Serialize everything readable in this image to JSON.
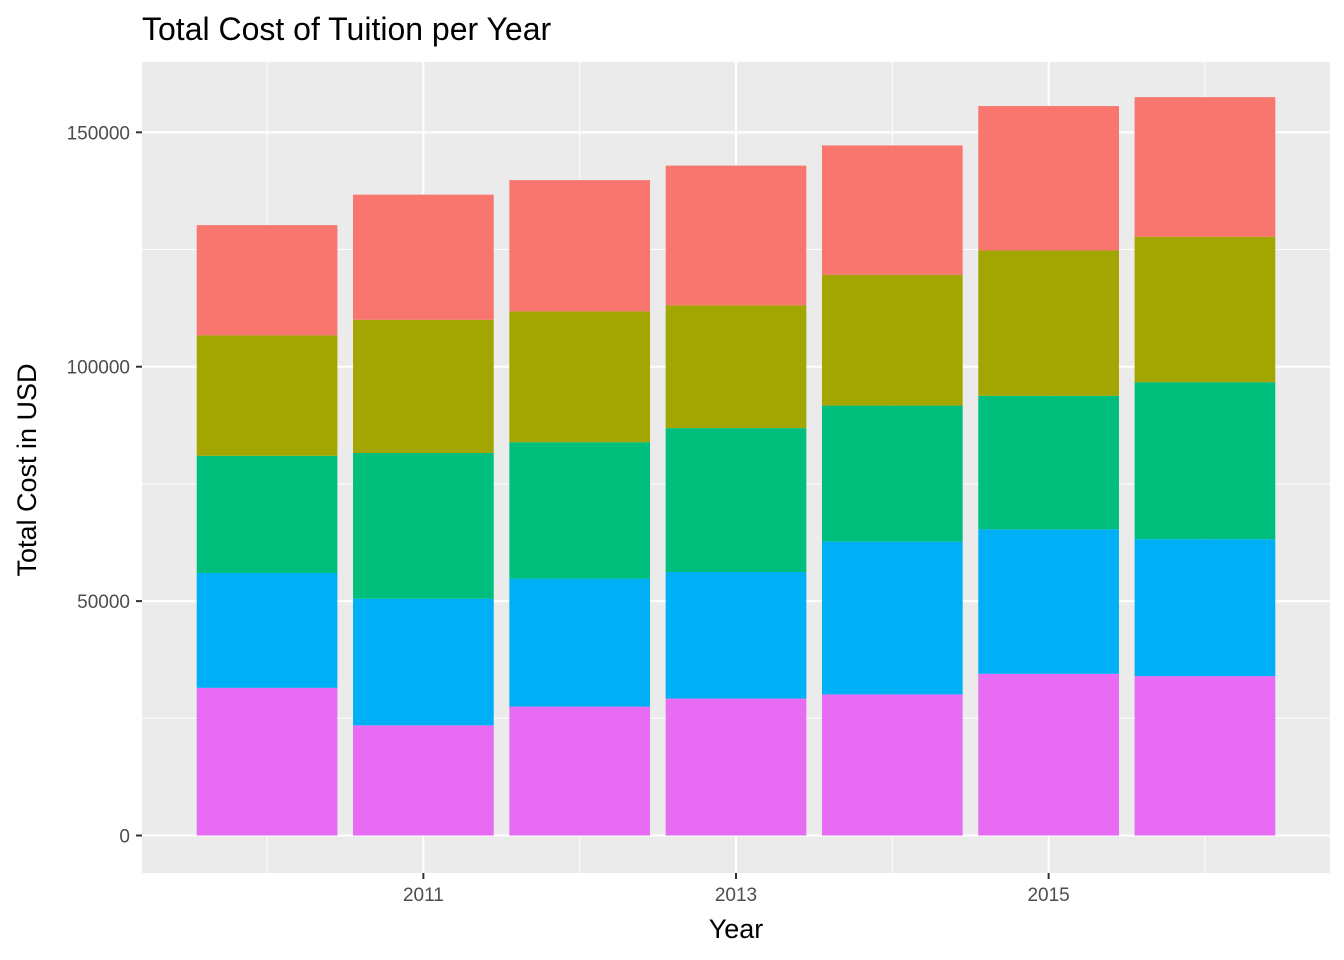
{
  "chart_data": {
    "type": "bar",
    "stacked": true,
    "title": "Total Cost of Tuition per Year",
    "xlabel": "Year",
    "ylabel": "Total Cost in USD",
    "categories": [
      2010,
      2011,
      2012,
      2013,
      2014,
      2015,
      2016
    ],
    "x_tick_labels": [
      "2011",
      "2013",
      "2015"
    ],
    "y_ticks": [
      0,
      50000,
      100000,
      150000
    ],
    "ylim": [
      -8000,
      165000
    ],
    "xlim": [
      2009.2,
      2016.8
    ],
    "grid": true,
    "legend": "none",
    "series": [
      {
        "color": "#E76BF3",
        "values": [
          31500,
          23500,
          27500,
          29200,
          30100,
          34500,
          34000
        ]
      },
      {
        "color": "#00B0F6",
        "values": [
          24500,
          27000,
          27300,
          27000,
          32600,
          30800,
          29200
        ]
      },
      {
        "color": "#00BF7D",
        "values": [
          25000,
          31100,
          29100,
          30700,
          29000,
          28500,
          33500
        ]
      },
      {
        "color": "#A3A500",
        "values": [
          25700,
          28400,
          27900,
          26200,
          27900,
          31000,
          31000
        ]
      },
      {
        "color": "#F8766D",
        "values": [
          23500,
          26700,
          28000,
          29800,
          27600,
          30800,
          29800
        ]
      }
    ]
  }
}
